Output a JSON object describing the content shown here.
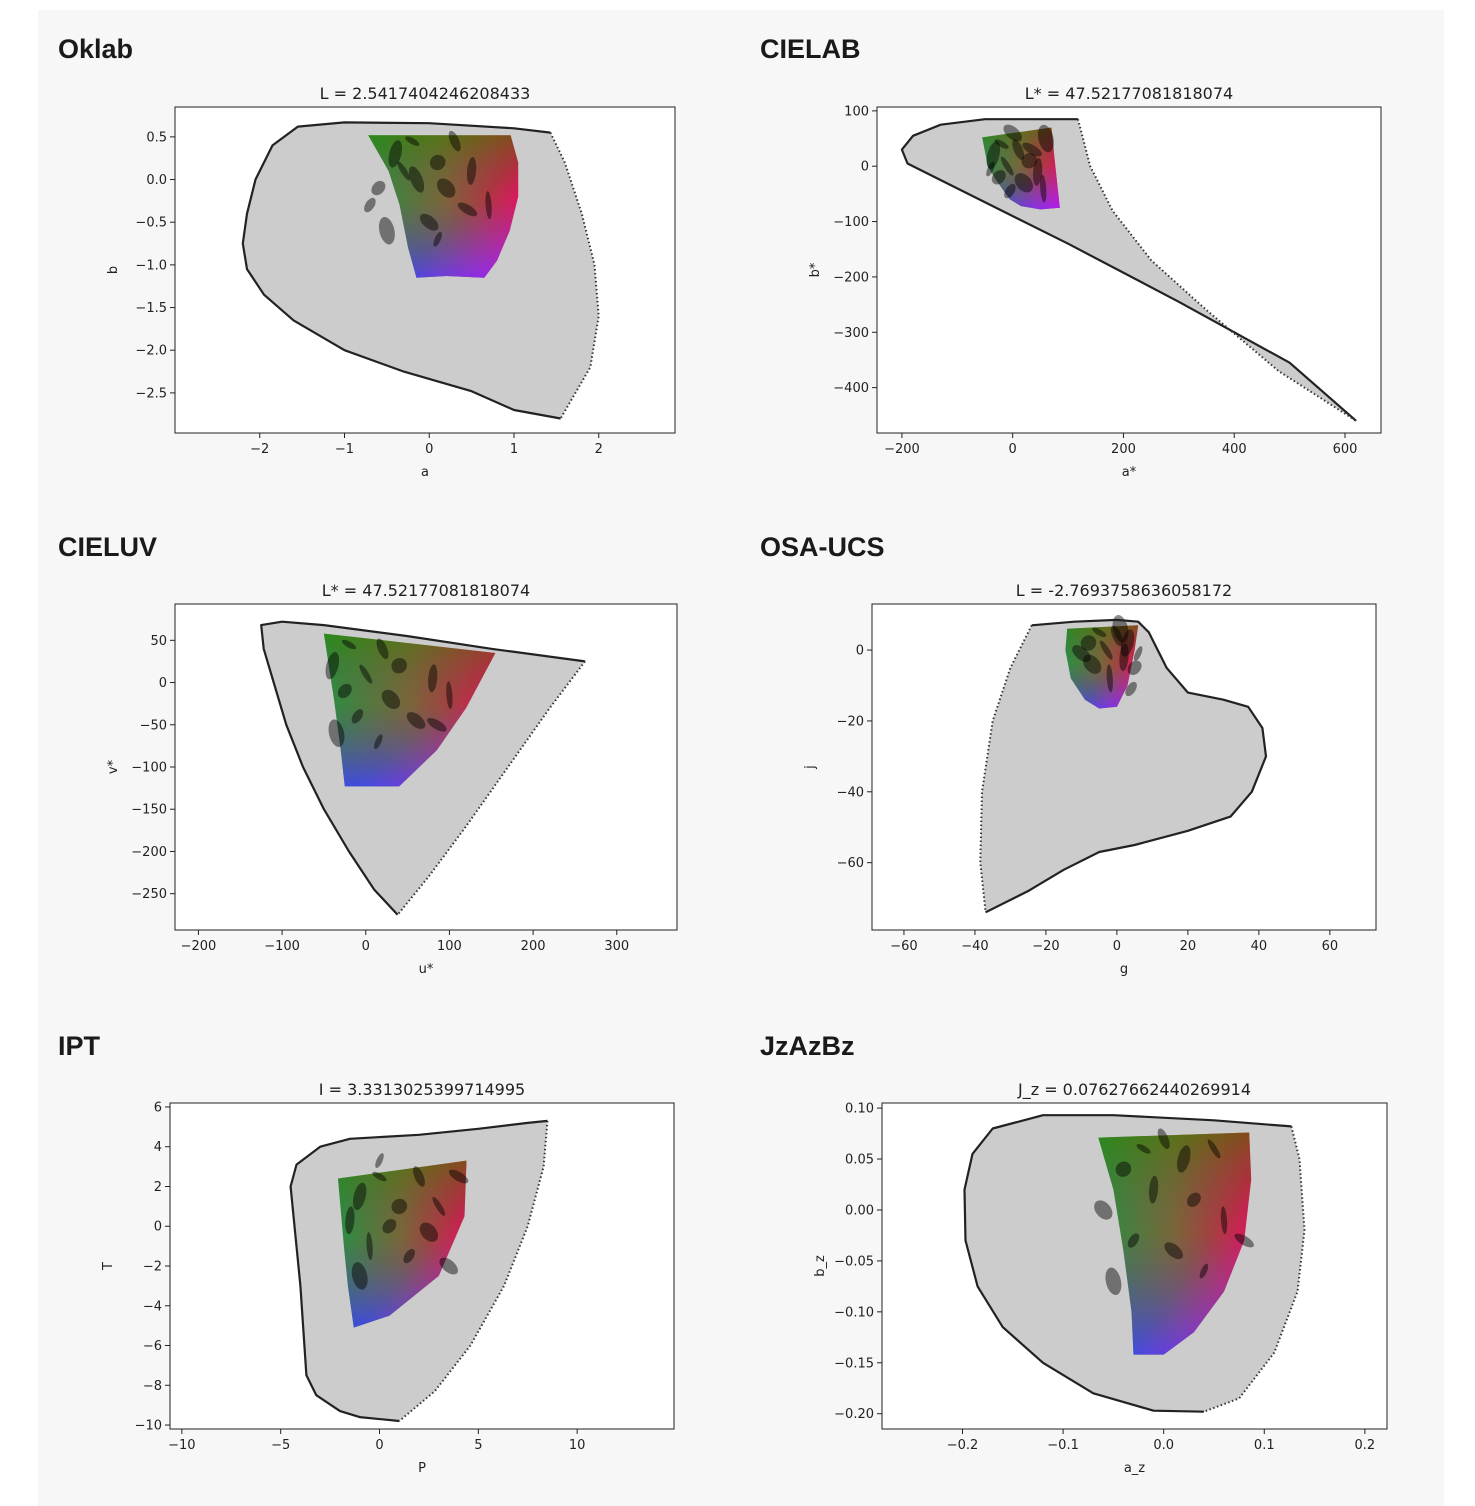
{
  "chart_data": [
    {
      "type": "area",
      "heading": "Oklab",
      "title": "L = 2.5417404246208433",
      "xlabel": "a",
      "ylabel": "b",
      "xlim": [
        -3.0,
        2.9
      ],
      "ylim": [
        -2.97,
        0.85
      ],
      "xticks": [
        -2,
        -1,
        0,
        1,
        2
      ],
      "xtick_labels": [
        "−2",
        "−1",
        "0",
        "1",
        "2"
      ],
      "yticks": [
        0.5,
        0.0,
        -0.5,
        -1.0,
        -1.5,
        -2.0,
        -2.5
      ],
      "ytick_labels": [
        "0.5",
        "0.0",
        "−0.5",
        "−1.0",
        "−1.5",
        "−2.0",
        "−2.5"
      ],
      "boundary_solid": [
        [
          1.43,
          0.55
        ],
        [
          1.0,
          0.6
        ],
        [
          0.0,
          0.66
        ],
        [
          -1.0,
          0.67
        ],
        [
          -1.55,
          0.62
        ],
        [
          -1.85,
          0.4
        ],
        [
          -2.05,
          0.0
        ],
        [
          -2.15,
          -0.4
        ],
        [
          -2.2,
          -0.75
        ],
        [
          -2.15,
          -1.05
        ],
        [
          -1.95,
          -1.35
        ],
        [
          -1.6,
          -1.65
        ],
        [
          -1.0,
          -2.0
        ],
        [
          -0.3,
          -2.25
        ],
        [
          0.5,
          -2.48
        ],
        [
          1.0,
          -2.7
        ],
        [
          1.55,
          -2.8
        ]
      ],
      "boundary_dotted": [
        [
          1.43,
          0.55
        ],
        [
          1.6,
          0.2
        ],
        [
          1.8,
          -0.4
        ],
        [
          1.95,
          -1.0
        ],
        [
          2.0,
          -1.6
        ],
        [
          1.9,
          -2.2
        ],
        [
          1.55,
          -2.8
        ]
      ],
      "colored_region": [
        [
          -0.72,
          0.52
        ],
        [
          0.96,
          0.52
        ],
        [
          1.05,
          0.2
        ],
        [
          1.05,
          -0.2
        ],
        [
          0.95,
          -0.6
        ],
        [
          0.8,
          -0.95
        ],
        [
          0.65,
          -1.15
        ],
        [
          0.2,
          -1.13
        ],
        [
          -0.15,
          -1.15
        ],
        [
          -0.25,
          -0.8
        ],
        [
          -0.35,
          -0.3
        ],
        [
          -0.48,
          0.1
        ],
        [
          -0.72,
          0.52
        ]
      ],
      "ellipses": [
        [
          -0.2,
          0.45
        ],
        [
          0.3,
          0.45
        ],
        [
          -0.4,
          0.3
        ],
        [
          0.1,
          0.2
        ],
        [
          -0.3,
          0.1
        ],
        [
          0.5,
          0.1
        ],
        [
          -0.6,
          -0.1
        ],
        [
          0.2,
          -0.1
        ],
        [
          0.7,
          -0.3
        ],
        [
          -0.7,
          -0.3
        ],
        [
          0.0,
          -0.5
        ],
        [
          -0.5,
          -0.6
        ],
        [
          0.1,
          -0.7
        ],
        [
          0.45,
          -0.35
        ],
        [
          -0.15,
          0.0
        ]
      ]
    },
    {
      "type": "area",
      "heading": "CIELAB",
      "title": "L* = 47.52177081818074",
      "xlabel": "a*",
      "ylabel": "b*",
      "xlim": [
        -245,
        665
      ],
      "ylim": [
        -482,
        107
      ],
      "xticks": [
        -200,
        0,
        200,
        400,
        600
      ],
      "xtick_labels": [
        "−200",
        "0",
        "200",
        "400",
        "600"
      ],
      "yticks": [
        100,
        0,
        -100,
        -200,
        -300,
        -400
      ],
      "ytick_labels": [
        "100",
        "0",
        "−100",
        "−200",
        "−300",
        "−400"
      ],
      "boundary_solid": [
        [
          118,
          85
        ],
        [
          40,
          85
        ],
        [
          -50,
          85
        ],
        [
          -130,
          75
        ],
        [
          -180,
          55
        ],
        [
          -200,
          30
        ],
        [
          -190,
          5
        ],
        [
          -130,
          -25
        ],
        [
          -40,
          -70
        ],
        [
          100,
          -140
        ],
        [
          300,
          -245
        ],
        [
          500,
          -355
        ],
        [
          620,
          -460
        ]
      ],
      "boundary_dotted": [
        [
          118,
          85
        ],
        [
          140,
          0
        ],
        [
          180,
          -80
        ],
        [
          250,
          -170
        ],
        [
          350,
          -260
        ],
        [
          480,
          -370
        ],
        [
          620,
          -460
        ]
      ],
      "colored_region": [
        [
          -55,
          52
        ],
        [
          70,
          70
        ],
        [
          75,
          20
        ],
        [
          85,
          -75
        ],
        [
          50,
          -78
        ],
        [
          15,
          -72
        ],
        [
          -5,
          -60
        ],
        [
          -30,
          -25
        ],
        [
          -45,
          0
        ],
        [
          -55,
          52
        ]
      ],
      "ellipses": [
        [
          -20,
          40
        ],
        [
          10,
          30
        ],
        [
          -35,
          20
        ],
        [
          30,
          10
        ],
        [
          -10,
          0
        ],
        [
          45,
          -10
        ],
        [
          -25,
          -20
        ],
        [
          20,
          -30
        ],
        [
          55,
          -40
        ],
        [
          -5,
          -45
        ],
        [
          0,
          60
        ],
        [
          60,
          50
        ],
        [
          -40,
          -5
        ],
        [
          35,
          30
        ]
      ]
    },
    {
      "type": "area",
      "heading": "CIELUV",
      "title": "L* = 47.52177081818074",
      "xlabel": "u*",
      "ylabel": "v*",
      "xlim": [
        -228,
        372
      ],
      "ylim": [
        -293,
        93
      ],
      "xticks": [
        -200,
        -100,
        0,
        100,
        200,
        300
      ],
      "xtick_labels": [
        "−200",
        "−100",
        "0",
        "100",
        "200",
        "300"
      ],
      "yticks": [
        50,
        0,
        -50,
        -100,
        -150,
        -200,
        -250
      ],
      "ytick_labels": [
        "50",
        "0",
        "−50",
        "−100",
        "−150",
        "−200",
        "−250"
      ],
      "boundary_solid": [
        [
          262,
          25
        ],
        [
          150,
          40
        ],
        [
          50,
          55
        ],
        [
          -50,
          68
        ],
        [
          -100,
          72
        ],
        [
          -125,
          68
        ],
        [
          -122,
          40
        ],
        [
          -110,
          0
        ],
        [
          -95,
          -50
        ],
        [
          -75,
          -100
        ],
        [
          -50,
          -150
        ],
        [
          -20,
          -200
        ],
        [
          10,
          -245
        ],
        [
          38,
          -275
        ]
      ],
      "boundary_dotted": [
        [
          262,
          25
        ],
        [
          220,
          -30
        ],
        [
          170,
          -100
        ],
        [
          120,
          -170
        ],
        [
          75,
          -230
        ],
        [
          38,
          -275
        ]
      ],
      "colored_region": [
        [
          -50,
          58
        ],
        [
          155,
          35
        ],
        [
          120,
          -30
        ],
        [
          85,
          -80
        ],
        [
          40,
          -123
        ],
        [
          -25,
          -123
        ],
        [
          -30,
          -80
        ],
        [
          -38,
          -20
        ],
        [
          -50,
          58
        ]
      ],
      "ellipses": [
        [
          -20,
          45
        ],
        [
          20,
          40
        ],
        [
          -40,
          20
        ],
        [
          40,
          20
        ],
        [
          0,
          10
        ],
        [
          80,
          5
        ],
        [
          -25,
          -10
        ],
        [
          30,
          -20
        ],
        [
          100,
          -15
        ],
        [
          -10,
          -40
        ],
        [
          60,
          -45
        ],
        [
          -35,
          -60
        ],
        [
          15,
          -70
        ],
        [
          85,
          -50
        ]
      ]
    },
    {
      "type": "area",
      "heading": "OSA-UCS",
      "title": "L = -2.7693758636058172",
      "xlabel": "g",
      "ylabel": "j",
      "xlim": [
        -69,
        73
      ],
      "ylim": [
        -79,
        13
      ],
      "xticks": [
        -60,
        -40,
        -20,
        0,
        20,
        40,
        60
      ],
      "xtick_labels": [
        "−60",
        "−40",
        "−20",
        "0",
        "20",
        "40",
        "60"
      ],
      "yticks": [
        0,
        -20,
        -40,
        -60
      ],
      "ytick_labels": [
        "0",
        "−20",
        "−40",
        "−60"
      ],
      "boundary_solid": [
        [
          -24,
          7
        ],
        [
          -12,
          8
        ],
        [
          0,
          8.5
        ],
        [
          6,
          8
        ],
        [
          9,
          5
        ],
        [
          14,
          -5
        ],
        [
          20,
          -12
        ],
        [
          30,
          -14
        ],
        [
          37,
          -16
        ],
        [
          41,
          -22
        ],
        [
          42,
          -30
        ],
        [
          38,
          -40
        ],
        [
          32,
          -47
        ],
        [
          20,
          -51
        ],
        [
          5,
          -55
        ],
        [
          -5,
          -57
        ],
        [
          -15,
          -62
        ],
        [
          -25,
          -68
        ],
        [
          -37,
          -74
        ]
      ],
      "boundary_dotted": [
        [
          -24,
          7
        ],
        [
          -30,
          -5
        ],
        [
          -35,
          -20
        ],
        [
          -38,
          -40
        ],
        [
          -38.5,
          -60
        ],
        [
          -37,
          -74
        ]
      ],
      "colored_region": [
        [
          -14,
          6
        ],
        [
          6,
          7
        ],
        [
          5,
          0
        ],
        [
          3,
          -10
        ],
        [
          0,
          -16
        ],
        [
          -5,
          -16.5
        ],
        [
          -9,
          -14
        ],
        [
          -13,
          -8
        ],
        [
          -14.5,
          0
        ],
        [
          -14,
          6
        ]
      ],
      "ellipses": [
        [
          -5,
          5
        ],
        [
          0,
          4
        ],
        [
          3,
          2
        ],
        [
          -8,
          2
        ],
        [
          -3,
          0
        ],
        [
          2,
          -2
        ],
        [
          5,
          -5
        ],
        [
          -7,
          -4
        ],
        [
          -2,
          -8
        ],
        [
          4,
          -11
        ],
        [
          -10,
          -1
        ],
        [
          1,
          6
        ],
        [
          6,
          -1
        ]
      ]
    },
    {
      "type": "area",
      "heading": "IPT",
      "title": "I = 3.3313025399714995",
      "xlabel": "P",
      "ylabel": "T",
      "xlim": [
        -10.6,
        14.9
      ],
      "ylim": [
        -10.2,
        6.2
      ],
      "xticks": [
        -10,
        -5,
        0,
        5,
        10
      ],
      "xtick_labels": [
        "−10",
        "−5",
        "0",
        "5",
        "10"
      ],
      "yticks": [
        6,
        4,
        2,
        0,
        -2,
        -4,
        -6,
        -8,
        -10
      ],
      "ytick_labels": [
        "6",
        "4",
        "2",
        "0",
        "−2",
        "−4",
        "−6",
        "−8",
        "−10"
      ],
      "boundary_solid": [
        [
          8.5,
          5.3
        ],
        [
          7.5,
          5.2
        ],
        [
          5,
          4.9
        ],
        [
          2,
          4.6
        ],
        [
          -1.5,
          4.4
        ],
        [
          -3,
          4.0
        ],
        [
          -4.2,
          3.1
        ],
        [
          -4.5,
          2.0
        ],
        [
          -4.3,
          0
        ],
        [
          -4.0,
          -3
        ],
        [
          -3.8,
          -6
        ],
        [
          -3.7,
          -7.5
        ],
        [
          -3.2,
          -8.5
        ],
        [
          -2,
          -9.3
        ],
        [
          -1,
          -9.6
        ],
        [
          1,
          -9.8
        ]
      ],
      "boundary_dotted": [
        [
          8.5,
          5.3
        ],
        [
          8.3,
          3
        ],
        [
          7.5,
          0
        ],
        [
          6.3,
          -3
        ],
        [
          4.6,
          -6
        ],
        [
          2.8,
          -8.3
        ],
        [
          1,
          -9.8
        ]
      ],
      "colored_region": [
        [
          -2.1,
          2.4
        ],
        [
          4.4,
          3.3
        ],
        [
          4.3,
          0.5
        ],
        [
          3,
          -2.5
        ],
        [
          0.5,
          -4.5
        ],
        [
          -1.3,
          -5.1
        ],
        [
          -1.6,
          -3
        ],
        [
          -1.8,
          -1
        ],
        [
          -2.1,
          2.4
        ]
      ],
      "ellipses": [
        [
          0,
          2.5
        ],
        [
          2,
          2.5
        ],
        [
          -1,
          1.5
        ],
        [
          1,
          1
        ],
        [
          3,
          1
        ],
        [
          -1.5,
          0.3
        ],
        [
          0.5,
          0
        ],
        [
          2.5,
          -0.3
        ],
        [
          -0.5,
          -1
        ],
        [
          1.5,
          -1.5
        ],
        [
          3.5,
          -2
        ],
        [
          -1,
          -2.5
        ],
        [
          0,
          3.3
        ],
        [
          4,
          2.5
        ]
      ]
    },
    {
      "type": "area",
      "heading": "JzAzBz",
      "title": "J_z = 0.07627662440269914",
      "xlabel": "a_z",
      "ylabel": "b_z",
      "xlim": [
        -0.28,
        0.222
      ],
      "ylim": [
        -0.215,
        0.105
      ],
      "xticks": [
        -0.2,
        -0.1,
        0.0,
        0.1,
        0.2
      ],
      "xtick_labels": [
        "−0.2",
        "−0.1",
        "0.0",
        "0.1",
        "0.2"
      ],
      "yticks": [
        0.1,
        0.05,
        0.0,
        -0.05,
        -0.1,
        -0.15,
        -0.2
      ],
      "ytick_labels": [
        "0.10",
        "0.05",
        "0.00",
        "−0.05",
        "−0.10",
        "−0.15",
        "−0.20"
      ],
      "boundary_solid": [
        [
          0.127,
          0.082
        ],
        [
          0.05,
          0.088
        ],
        [
          -0.05,
          0.093
        ],
        [
          -0.12,
          0.093
        ],
        [
          -0.17,
          0.08
        ],
        [
          -0.19,
          0.055
        ],
        [
          -0.198,
          0.02
        ],
        [
          -0.197,
          -0.03
        ],
        [
          -0.185,
          -0.075
        ],
        [
          -0.16,
          -0.115
        ],
        [
          -0.12,
          -0.15
        ],
        [
          -0.07,
          -0.18
        ],
        [
          -0.01,
          -0.197
        ],
        [
          0.04,
          -0.198
        ]
      ],
      "boundary_dotted": [
        [
          0.127,
          0.082
        ],
        [
          0.135,
          0.05
        ],
        [
          0.14,
          -0.02
        ],
        [
          0.133,
          -0.08
        ],
        [
          0.11,
          -0.14
        ],
        [
          0.075,
          -0.185
        ],
        [
          0.04,
          -0.198
        ]
      ],
      "colored_region": [
        [
          -0.065,
          0.071
        ],
        [
          0.085,
          0.076
        ],
        [
          0.087,
          0.03
        ],
        [
          0.08,
          -0.03
        ],
        [
          0.06,
          -0.08
        ],
        [
          0.03,
          -0.12
        ],
        [
          0.0,
          -0.142
        ],
        [
          -0.03,
          -0.142
        ],
        [
          -0.032,
          -0.1
        ],
        [
          -0.04,
          -0.04
        ],
        [
          -0.05,
          0.02
        ],
        [
          -0.065,
          0.071
        ]
      ],
      "ellipses": [
        [
          -0.02,
          0.06
        ],
        [
          0.0,
          0.07
        ],
        [
          0.02,
          0.05
        ],
        [
          -0.04,
          0.04
        ],
        [
          0.05,
          0.06
        ],
        [
          -0.01,
          0.02
        ],
        [
          0.03,
          0.01
        ],
        [
          -0.06,
          0.0
        ],
        [
          0.06,
          -0.01
        ],
        [
          -0.03,
          -0.03
        ],
        [
          0.01,
          -0.04
        ],
        [
          -0.05,
          -0.07
        ],
        [
          0.04,
          -0.06
        ],
        [
          0.08,
          -0.03
        ]
      ]
    }
  ]
}
